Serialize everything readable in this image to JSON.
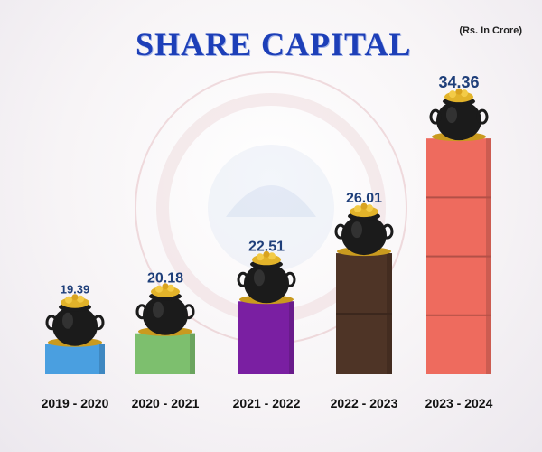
{
  "header": {
    "title": "SHARE CAPITAL",
    "unit": "(Rs. In Crore)"
  },
  "colors": {
    "title": "#1d3fb8",
    "value_label": "#1f3f7a",
    "bars": [
      "#4a9fe0",
      "#7dbf6e",
      "#7a1fa2",
      "#4e3426",
      "#ee6b5e"
    ]
  },
  "icons": {
    "bar_topper": "gold-coin-pot-icon",
    "background": "cooperative-bank-emblem-watermark"
  },
  "chart_data": {
    "type": "bar",
    "title": "SHARE CAPITAL",
    "unit": "(Rs. In Crore)",
    "categories": [
      "2019 - 2020",
      "2020 - 2021",
      "2021 - 2022",
      "2022 - 2023",
      "2023 - 2024"
    ],
    "values": [
      19.39,
      20.18,
      22.51,
      26.01,
      34.36
    ],
    "value_labels": [
      "19.39",
      "20.18",
      "22.51",
      "26.01",
      "34.36"
    ],
    "xlabel": "",
    "ylabel": "",
    "grid": false,
    "legend": "none"
  }
}
